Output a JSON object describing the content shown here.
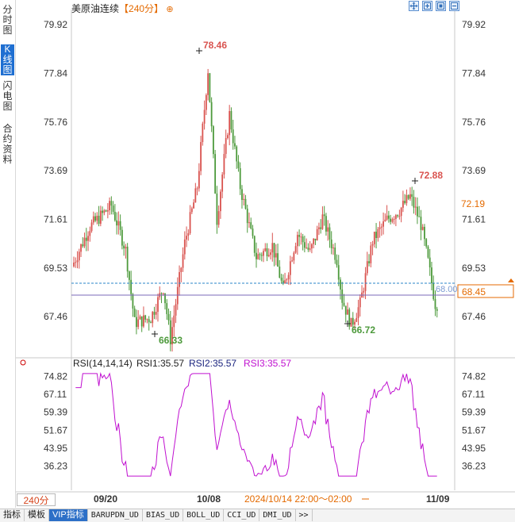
{
  "sidebar": {
    "tabs": [
      {
        "label": "分时图",
        "active": false
      },
      {
        "label": "K线图",
        "active": true
      },
      {
        "label": "闪电图",
        "active": false
      },
      {
        "label": "合约资料",
        "active": false
      }
    ]
  },
  "header": {
    "instrument": "美原油连续",
    "period": "【240分】",
    "add_symbol": "⊕"
  },
  "toolbar": {
    "icons": [
      "move-cross-icon",
      "zoom-in-icon",
      "restore-icon",
      "zoom-out-icon"
    ]
  },
  "colors": {
    "up": "#d9534f",
    "down": "#4d9a3c",
    "rsi": "#c010d0",
    "price_line": "#2a86c8",
    "avg_line": "#7b68b8",
    "current_box": "#e46a00"
  },
  "chart_data": {
    "type": "candlestick",
    "price_axis": {
      "ticks": [
        "79.92",
        "77.84",
        "75.76",
        "73.69",
        "71.61",
        "69.53",
        "67.46"
      ],
      "range": [
        65.8,
        80.3
      ]
    },
    "annotations": {
      "high_1": "78.46",
      "low_1": "66.33",
      "high_2": "72.88",
      "low_2": "66.72"
    },
    "right_labels": {
      "price_a": "72.19",
      "price_current": "68.45",
      "price_inner": "68.00"
    },
    "rsi": {
      "title": "RSI(14,14,14)",
      "rsi1": "RSI1:35.57",
      "rsi2": "RSI2:35.57",
      "rsi3": "RSI3:35.57",
      "ticks": [
        "74.82",
        "67.11",
        "59.39",
        "51.67",
        "43.95",
        "36.23"
      ],
      "range": [
        30,
        77
      ]
    },
    "x_axis": {
      "period_label": "240分",
      "dates": [
        "09/20",
        "10/08",
        "11/09"
      ],
      "crosshair_time": "2024/10/14 22:00～02:00"
    }
  },
  "bottom_tabs": [
    "指标",
    "模板",
    "VIP指标",
    "BARUPDN_UD",
    "BIAS_UD",
    "BOLL_UD",
    "CCI_UD",
    "DMI_UD",
    ">>"
  ]
}
